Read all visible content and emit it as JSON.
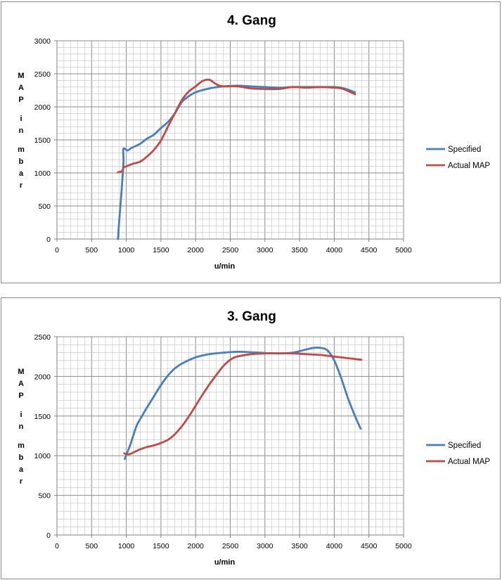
{
  "chart_data": [
    {
      "type": "line",
      "title": "4. Gang",
      "xlabel": "u/min",
      "ylabel": "MAP in mbar",
      "xlim": [
        0,
        5000
      ],
      "ylim": [
        0,
        3000
      ],
      "xticks": [
        "0",
        "500",
        "1000",
        "1500",
        "2000",
        "2500",
        "3000",
        "3500",
        "4000",
        "4500",
        "5000"
      ],
      "yticks": [
        "0",
        "500",
        "1000",
        "1500",
        "2000",
        "2500",
        "3000"
      ],
      "grid": true,
      "legend_position": "right",
      "series": [
        {
          "name": "Specified",
          "color": "#4a7ebb",
          "points": [
            [
              880,
              0
            ],
            [
              900,
              300
            ],
            [
              930,
              700
            ],
            [
              950,
              1000
            ],
            [
              960,
              1200
            ],
            [
              955,
              1320
            ],
            [
              960,
              1370
            ],
            [
              990,
              1360
            ],
            [
              1020,
              1340
            ],
            [
              1080,
              1380
            ],
            [
              1200,
              1440
            ],
            [
              1300,
              1520
            ],
            [
              1400,
              1580
            ],
            [
              1500,
              1680
            ],
            [
              1600,
              1770
            ],
            [
              1700,
              1900
            ],
            [
              1800,
              2070
            ],
            [
              1900,
              2160
            ],
            [
              2000,
              2220
            ],
            [
              2200,
              2280
            ],
            [
              2400,
              2310
            ],
            [
              2600,
              2320
            ],
            [
              2800,
              2310
            ],
            [
              3000,
              2300
            ],
            [
              3200,
              2290
            ],
            [
              3400,
              2300
            ],
            [
              3600,
              2300
            ],
            [
              3800,
              2300
            ],
            [
              4000,
              2300
            ],
            [
              4100,
              2290
            ],
            [
              4200,
              2260
            ],
            [
              4300,
              2220
            ]
          ]
        },
        {
          "name": "Actual MAP",
          "color": "#be4b48",
          "points": [
            [
              880,
              1010
            ],
            [
              940,
              1030
            ],
            [
              960,
              1080
            ],
            [
              1000,
              1100
            ],
            [
              1100,
              1140
            ],
            [
              1200,
              1170
            ],
            [
              1300,
              1250
            ],
            [
              1400,
              1350
            ],
            [
              1500,
              1490
            ],
            [
              1600,
              1700
            ],
            [
              1700,
              1900
            ],
            [
              1800,
              2100
            ],
            [
              1900,
              2230
            ],
            [
              2000,
              2310
            ],
            [
              2100,
              2390
            ],
            [
              2200,
              2410
            ],
            [
              2300,
              2340
            ],
            [
              2400,
              2310
            ],
            [
              2600,
              2310
            ],
            [
              2800,
              2280
            ],
            [
              3000,
              2270
            ],
            [
              3200,
              2270
            ],
            [
              3400,
              2300
            ],
            [
              3600,
              2290
            ],
            [
              3800,
              2300
            ],
            [
              4000,
              2290
            ],
            [
              4100,
              2280
            ],
            [
              4200,
              2240
            ],
            [
              4300,
              2190
            ]
          ]
        }
      ]
    },
    {
      "type": "line",
      "title": "3. Gang",
      "xlabel": "u/min",
      "ylabel": "MAP in mbar",
      "xlim": [
        0,
        5000
      ],
      "ylim": [
        0,
        2500
      ],
      "xticks": [
        "0",
        "500",
        "1000",
        "1500",
        "2000",
        "2500",
        "3000",
        "3500",
        "4000",
        "4500",
        "5000"
      ],
      "yticks": [
        "0",
        "500",
        "1000",
        "1500",
        "2000",
        "2500"
      ],
      "grid": true,
      "legend_position": "right",
      "series": [
        {
          "name": "Specified",
          "color": "#4a7ebb",
          "points": [
            [
              980,
              960
            ],
            [
              1000,
              1010
            ],
            [
              1050,
              1120
            ],
            [
              1100,
              1250
            ],
            [
              1150,
              1380
            ],
            [
              1200,
              1460
            ],
            [
              1300,
              1610
            ],
            [
              1400,
              1750
            ],
            [
              1500,
              1890
            ],
            [
              1600,
              2010
            ],
            [
              1700,
              2100
            ],
            [
              1800,
              2160
            ],
            [
              2000,
              2240
            ],
            [
              2200,
              2280
            ],
            [
              2400,
              2300
            ],
            [
              2600,
              2310
            ],
            [
              2800,
              2305
            ],
            [
              3000,
              2295
            ],
            [
              3200,
              2290
            ],
            [
              3400,
              2300
            ],
            [
              3600,
              2340
            ],
            [
              3700,
              2360
            ],
            [
              3800,
              2360
            ],
            [
              3900,
              2330
            ],
            [
              4000,
              2200
            ],
            [
              4100,
              1980
            ],
            [
              4200,
              1720
            ],
            [
              4300,
              1500
            ],
            [
              4380,
              1340
            ]
          ]
        },
        {
          "name": "Actual MAP",
          "color": "#be4b48",
          "points": [
            [
              970,
              1030
            ],
            [
              1000,
              1020
            ],
            [
              1050,
              1020
            ],
            [
              1100,
              1040
            ],
            [
              1200,
              1080
            ],
            [
              1300,
              1110
            ],
            [
              1400,
              1130
            ],
            [
              1500,
              1160
            ],
            [
              1600,
              1200
            ],
            [
              1700,
              1270
            ],
            [
              1800,
              1370
            ],
            [
              1900,
              1490
            ],
            [
              2000,
              1630
            ],
            [
              2100,
              1770
            ],
            [
              2200,
              1900
            ],
            [
              2300,
              2020
            ],
            [
              2400,
              2130
            ],
            [
              2500,
              2210
            ],
            [
              2600,
              2250
            ],
            [
              2800,
              2280
            ],
            [
              3000,
              2290
            ],
            [
              3200,
              2290
            ],
            [
              3400,
              2290
            ],
            [
              3600,
              2280
            ],
            [
              3800,
              2270
            ],
            [
              4000,
              2250
            ],
            [
              4200,
              2230
            ],
            [
              4390,
              2210
            ]
          ]
        }
      ]
    }
  ]
}
